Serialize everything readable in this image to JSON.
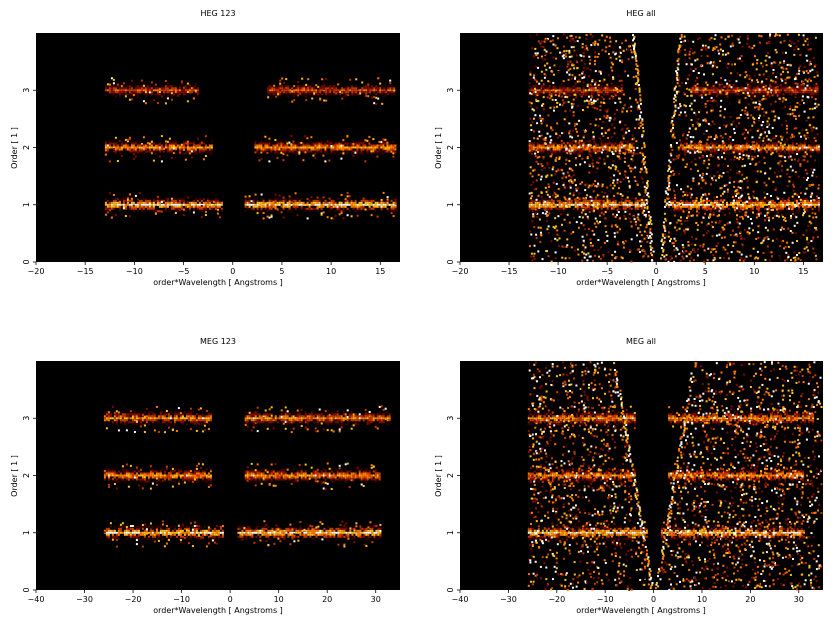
{
  "figure": {
    "background": "#ffffff",
    "panel_background": "#000000",
    "colormap": [
      "#000000",
      "#3a0000",
      "#7a0c00",
      "#c43a00",
      "#ff7a00",
      "#ffc21a",
      "#ffffff"
    ]
  },
  "chart_data": [
    {
      "type": "heatmap",
      "title": "HEG 123",
      "xlabel": "order*Wavelength [ Angstroms ]",
      "ylabel": "Order [ 1 ]",
      "xlim": [
        -20,
        17
      ],
      "ylim": [
        0,
        4
      ],
      "xticks": [
        -20,
        -15,
        -10,
        -5,
        0,
        5,
        10,
        15
      ],
      "yticks": [
        0,
        1,
        2,
        3
      ],
      "grid": false,
      "bands": [
        {
          "order": 1,
          "x_ranges": [
            [
              -13,
              -1.2
            ],
            [
              1.2,
              16.5
            ]
          ],
          "intensity": 1.0
        },
        {
          "order": 2,
          "x_ranges": [
            [
              -13,
              -2.2
            ],
            [
              2.2,
              16.5
            ]
          ],
          "intensity": 0.8
        },
        {
          "order": 3,
          "x_ranges": [
            [
              -13,
              -3.5
            ],
            [
              3.5,
              16.5
            ]
          ],
          "intensity": 0.6
        }
      ]
    },
    {
      "type": "heatmap",
      "title": "HEG all",
      "xlabel": "order*Wavelength [ Angstroms ]",
      "ylabel": "Order [ 1 ]",
      "xlim": [
        -20,
        17
      ],
      "ylim": [
        0,
        4
      ],
      "xticks": [
        -20,
        -15,
        -10,
        -5,
        0,
        5,
        10,
        15
      ],
      "yticks": [
        0,
        1,
        2,
        3
      ],
      "grid": false,
      "bands": [
        {
          "order": 1,
          "x_ranges": [
            [
              -13,
              -1.2
            ],
            [
              1.2,
              16.5
            ]
          ],
          "intensity": 1.0
        },
        {
          "order": 2,
          "x_ranges": [
            [
              -13,
              -2.2
            ],
            [
              2.2,
              16.5
            ]
          ],
          "intensity": 0.8
        },
        {
          "order": 3,
          "x_ranges": [
            [
              -13,
              -3.5
            ],
            [
              3.5,
              16.5
            ]
          ],
          "intensity": 0.6
        }
      ]
    },
    {
      "type": "heatmap",
      "title": "MEG 123",
      "xlabel": "order*Wavelength [ Angstroms ]",
      "ylabel": "Order [ 1 ]",
      "xlim": [
        -40,
        35
      ],
      "ylim": [
        0,
        4
      ],
      "xticks": [
        -40,
        -30,
        -20,
        -10,
        0,
        10,
        20,
        30
      ],
      "yticks": [
        0,
        1,
        2,
        3
      ],
      "grid": false,
      "bands": [
        {
          "order": 1,
          "x_ranges": [
            [
              -26,
              -1.5
            ],
            [
              1.5,
              31
            ]
          ],
          "intensity": 1.0
        },
        {
          "order": 2,
          "x_ranges": [
            [
              -26,
              -4
            ],
            [
              3,
              31
            ]
          ],
          "intensity": 0.8
        },
        {
          "order": 3,
          "x_ranges": [
            [
              -26,
              -4
            ],
            [
              3,
              33
            ]
          ],
          "intensity": 0.8
        }
      ]
    },
    {
      "type": "heatmap",
      "title": "MEG all",
      "xlabel": "order*Wavelength [ Angstroms ]",
      "ylabel": "Order [ 1 ]",
      "xlim": [
        -40,
        35
      ],
      "ylim": [
        0,
        4
      ],
      "xticks": [
        -40,
        -30,
        -20,
        -10,
        0,
        10,
        20,
        30
      ],
      "yticks": [
        0,
        1,
        2,
        3
      ],
      "grid": false,
      "bands": [
        {
          "order": 1,
          "x_ranges": [
            [
              -26,
              -1.5
            ],
            [
              1.5,
              31
            ]
          ],
          "intensity": 1.0
        },
        {
          "order": 2,
          "x_ranges": [
            [
              -26,
              -4
            ],
            [
              3,
              31
            ]
          ],
          "intensity": 0.8
        },
        {
          "order": 3,
          "x_ranges": [
            [
              -26,
              -4
            ],
            [
              3,
              33
            ]
          ],
          "intensity": 0.8
        }
      ]
    }
  ]
}
